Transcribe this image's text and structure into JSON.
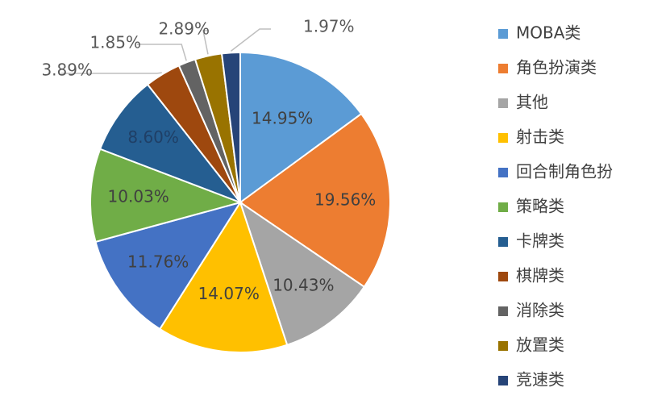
{
  "chart_data": {
    "type": "pie",
    "title": "",
    "legend_position": "right",
    "series": [
      {
        "name": "MOBA类",
        "value": 14.95,
        "label": "14.95%",
        "color": "#5B9BD5"
      },
      {
        "name": "角色扮演类",
        "value": 19.56,
        "label": "19.56%",
        "color": "#ED7D31"
      },
      {
        "name": "其他",
        "value": 10.43,
        "label": "10.43%",
        "color": "#A5A5A5"
      },
      {
        "name": "射击类",
        "value": 14.07,
        "label": "14.07%",
        "color": "#FFC000"
      },
      {
        "name": "回合制角色扮",
        "value": 11.76,
        "label": "11.76%",
        "color": "#4472C4"
      },
      {
        "name": "策略类",
        "value": 10.03,
        "label": "10.03%",
        "color": "#70AD47"
      },
      {
        "name": "卡牌类",
        "value": 8.6,
        "label": "8.60%",
        "color": "#255E91"
      },
      {
        "name": "棋牌类",
        "value": 3.89,
        "label": "3.89%",
        "color": "#9E480E"
      },
      {
        "name": "消除类",
        "value": 1.85,
        "label": "1.85%",
        "color": "#636363"
      },
      {
        "name": "放置类",
        "value": 2.89,
        "label": "2.89%",
        "color": "#997300"
      },
      {
        "name": "竞速类",
        "value": 1.97,
        "label": "1.97%",
        "color": "#264478"
      }
    ]
  }
}
